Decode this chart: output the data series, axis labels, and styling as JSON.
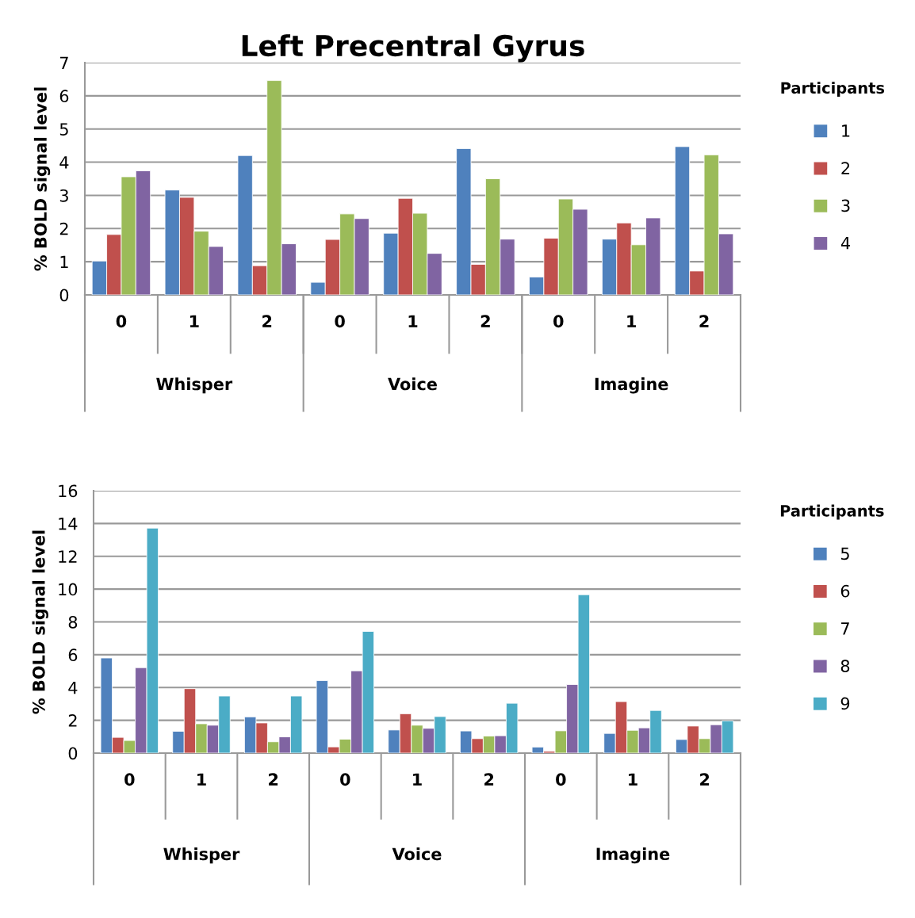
{
  "chart_data": [
    {
      "type": "bar",
      "title": "Left Precentral Gyrus",
      "ylabel": "% BOLD signal level",
      "legend_title": "Participants",
      "categories": [
        "0",
        "1",
        "2",
        "0",
        "1",
        "2",
        "0",
        "1",
        "2"
      ],
      "annotations": [
        "Whisper",
        "Voice",
        "Imagine"
      ],
      "ylim": [
        0,
        7
      ],
      "yticks": [
        0,
        1,
        2,
        3,
        4,
        5,
        6,
        7
      ],
      "grid": "y",
      "legend": "right",
      "series": [
        {
          "name": "1",
          "color": "#4f81bd",
          "values": [
            1.02,
            3.16,
            4.2,
            0.38,
            1.86,
            4.41,
            0.54,
            1.68,
            4.47
          ]
        },
        {
          "name": "2",
          "color": "#c0504d",
          "values": [
            1.82,
            2.94,
            0.88,
            1.67,
            2.91,
            0.92,
            1.71,
            2.17,
            0.72
          ]
        },
        {
          "name": "3",
          "color": "#9bbb59",
          "values": [
            3.56,
            1.92,
            6.46,
            2.44,
            2.46,
            3.5,
            2.89,
            1.51,
            4.22
          ]
        },
        {
          "name": "4",
          "color": "#8064a2",
          "values": [
            3.74,
            1.46,
            1.54,
            2.3,
            1.25,
            1.68,
            2.58,
            2.32,
            1.84
          ]
        }
      ]
    },
    {
      "type": "bar",
      "ylabel": "% BOLD signal level",
      "legend_title": "Participants",
      "categories": [
        "0",
        "1",
        "2",
        "0",
        "1",
        "2",
        "0",
        "1",
        "2"
      ],
      "annotations": [
        "Whisper",
        "Voice",
        "Imagine"
      ],
      "ylim": [
        0,
        16
      ],
      "yticks": [
        0,
        2,
        4,
        6,
        8,
        10,
        12,
        14,
        16
      ],
      "grid": "y",
      "legend": "right",
      "series": [
        {
          "name": "5",
          "color": "#4f81bd",
          "values": [
            5.8,
            1.33,
            2.21,
            4.42,
            1.41,
            1.35,
            0.37,
            1.2,
            0.83
          ]
        },
        {
          "name": "6",
          "color": "#c0504d",
          "values": [
            0.96,
            3.93,
            1.84,
            0.38,
            2.4,
            0.88,
            0.11,
            3.14,
            1.65
          ]
        },
        {
          "name": "7",
          "color": "#9bbb59",
          "values": [
            0.77,
            1.79,
            0.69,
            0.85,
            1.7,
            1.04,
            1.36,
            1.39,
            0.88
          ]
        },
        {
          "name": "8",
          "color": "#8064a2",
          "values": [
            5.21,
            1.7,
            0.99,
            5.02,
            1.51,
            1.06,
            4.18,
            1.54,
            1.73
          ]
        },
        {
          "name": "9",
          "color": "#4bacc6",
          "values": [
            13.72,
            3.48,
            3.48,
            7.42,
            2.23,
            3.04,
            9.66,
            2.6,
            1.97
          ]
        }
      ]
    }
  ]
}
